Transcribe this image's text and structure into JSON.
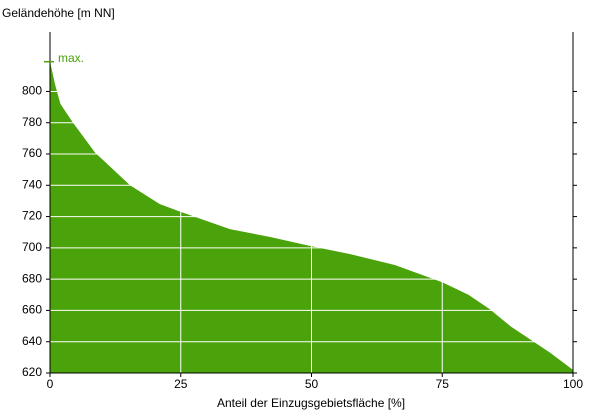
{
  "chart_data": {
    "type": "area",
    "y_label": "Geländehöhe [m NN]",
    "x_label": "Anteil der Einzugsgebietsfläche [%]",
    "x": [
      0,
      1,
      2,
      4.4,
      8.6,
      15.3,
      21,
      25,
      34.4,
      42,
      50,
      57.4,
      66,
      75,
      80,
      84,
      88,
      95.6,
      100
    ],
    "values": [
      819,
      804,
      792,
      780,
      761,
      740,
      728,
      723,
      712,
      707,
      701,
      696,
      689,
      678,
      670,
      661,
      650,
      633,
      622
    ],
    "color": "#4aa30a",
    "annotation": {
      "text": "max.",
      "value": 819
    },
    "xlim": [
      0,
      100
    ],
    "xticks": [
      0,
      25,
      50,
      75,
      100
    ],
    "ylim": [
      620,
      838
    ],
    "yticks": [
      620,
      640,
      660,
      680,
      700,
      720,
      740,
      760,
      780,
      800
    ],
    "grid": true
  }
}
